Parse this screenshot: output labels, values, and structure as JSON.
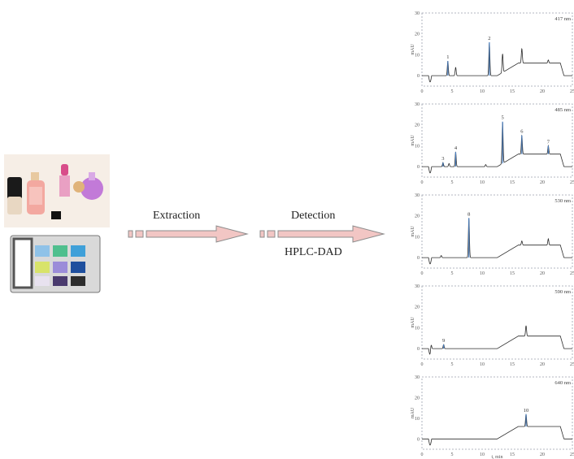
{
  "workflow": {
    "step1_label": "Extraction",
    "step2_label": "Detection",
    "method_label": "HPLC-DAD"
  },
  "colors": {
    "arrow_fill": "#f2c6c4",
    "arrow_stroke": "#8c8c8c",
    "trace": "#2b2b2b",
    "peak_blue": "#4a7fc0",
    "frame": "#9aa0ad"
  },
  "axis": {
    "ylabel": "mAU",
    "xlabel": "t, min",
    "x_ticks": [
      "0",
      "5",
      "10",
      "15",
      "20",
      "25"
    ],
    "y_ticks": [
      "0",
      "10",
      "20",
      "30"
    ]
  },
  "chart_data": [
    {
      "type": "line",
      "wavelength_label": "417 nm",
      "xlim": [
        0,
        25
      ],
      "ylim": [
        -5,
        30
      ],
      "peaks": [
        {
          "label": "1",
          "x": 4.3,
          "height": 7
        },
        {
          "label": "2",
          "x": 11.2,
          "height": 16
        }
      ],
      "extra_peaks": [
        {
          "x": 5.6,
          "height": 4
        },
        {
          "x": 13.4,
          "height": 9
        },
        {
          "x": 16.6,
          "height": 7
        },
        {
          "x": 21.0,
          "height": 1.5
        }
      ]
    },
    {
      "type": "line",
      "wavelength_label": "485 nm",
      "xlim": [
        0,
        25
      ],
      "ylim": [
        -5,
        30
      ],
      "peaks": [
        {
          "label": "3",
          "x": 3.5,
          "height": 2
        },
        {
          "label": "4",
          "x": 5.6,
          "height": 7
        },
        {
          "label": "5",
          "x": 13.4,
          "height": 20
        },
        {
          "label": "6",
          "x": 16.6,
          "height": 9
        },
        {
          "label": "7",
          "x": 21.0,
          "height": 4
        }
      ],
      "extra_peaks": [
        {
          "x": 4.5,
          "height": 1.5
        },
        {
          "x": 10.6,
          "height": 1
        }
      ]
    },
    {
      "type": "line",
      "wavelength_label": "530 nm",
      "xlim": [
        0,
        25
      ],
      "ylim": [
        -5,
        30
      ],
      "peaks": [
        {
          "label": "8",
          "x": 7.8,
          "height": 19
        }
      ],
      "extra_peaks": [
        {
          "x": 3.2,
          "height": 1
        },
        {
          "x": 16.6,
          "height": 2
        },
        {
          "x": 21.0,
          "height": 3
        }
      ]
    },
    {
      "type": "line",
      "wavelength_label": "590 nm",
      "xlim": [
        0,
        25
      ],
      "ylim": [
        -5,
        30
      ],
      "peaks": [
        {
          "label": "9",
          "x": 3.6,
          "height": 2
        }
      ],
      "extra_peaks": [
        {
          "x": 1.5,
          "height": 3
        },
        {
          "x": 17.3,
          "height": 5
        }
      ]
    },
    {
      "type": "line",
      "wavelength_label": "640 nm",
      "xlim": [
        0,
        25
      ],
      "ylim": [
        -5,
        30
      ],
      "peaks": [
        {
          "label": "10",
          "x": 17.3,
          "height": 6
        }
      ],
      "extra_peaks": []
    }
  ]
}
